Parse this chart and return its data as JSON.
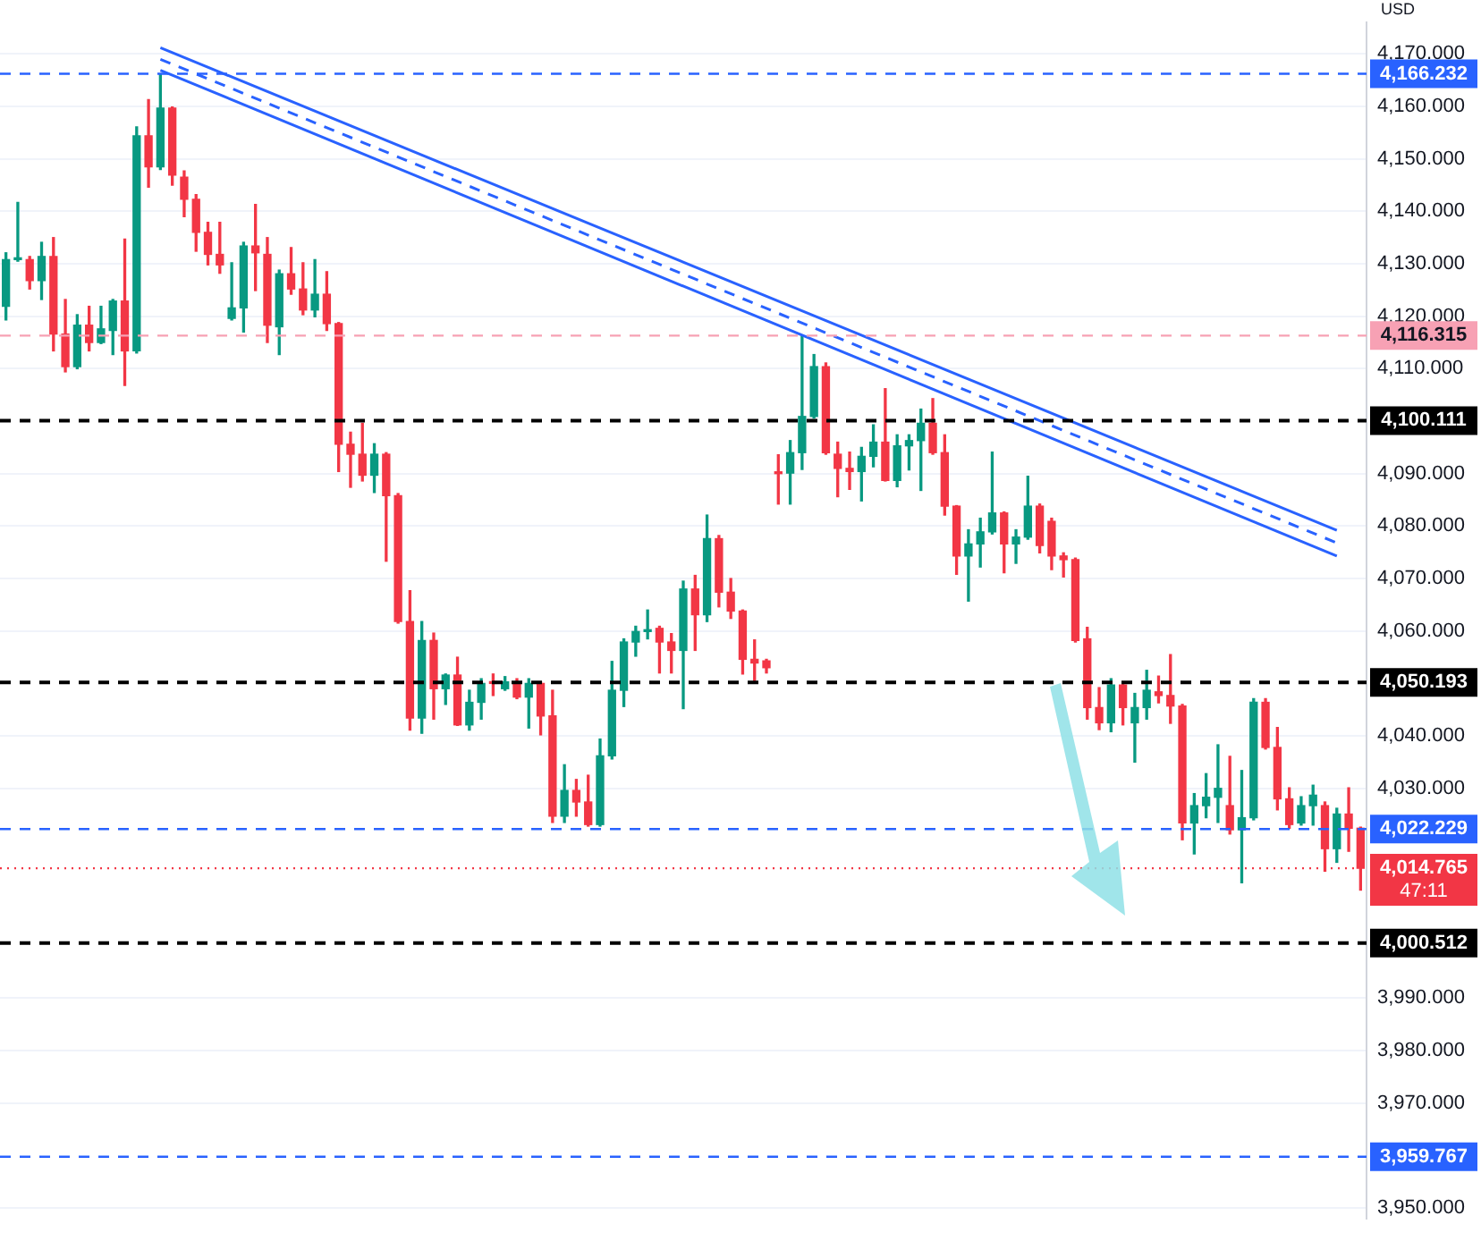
{
  "chart_data": {
    "type": "candlestick",
    "ylabel": "USD",
    "legend": false,
    "grid": "y",
    "marker": "none",
    "categories": [
      null,
      null,
      null,
      null,
      null,
      null,
      null,
      null,
      null,
      null,
      null,
      null,
      null,
      null,
      null,
      null,
      null,
      null,
      null,
      null,
      null,
      null,
      null,
      null,
      null,
      null,
      null,
      null,
      null,
      null,
      null,
      null,
      null,
      null,
      null,
      null,
      null,
      null,
      null,
      null,
      null,
      null,
      null,
      null,
      null,
      null,
      null,
      null,
      null,
      null,
      null,
      null,
      null,
      null,
      null,
      null,
      null,
      null,
      null,
      null,
      null,
      null,
      null,
      null,
      null,
      null,
      null,
      null,
      null,
      null,
      null,
      null,
      null,
      null,
      null,
      null,
      null,
      null,
      null,
      null,
      null,
      null,
      null,
      null,
      null,
      null,
      null,
      null,
      null,
      null,
      null,
      null,
      null,
      null,
      null,
      null,
      null,
      null,
      null,
      null,
      null,
      null,
      null,
      null,
      null,
      null,
      null,
      null,
      null,
      null,
      null,
      null,
      null,
      null,
      null
    ],
    "ohlc": [
      [
        4121.9,
        4132.1,
        4119.3,
        4130.8
      ],
      [
        4130.8,
        4141.7,
        4130.5,
        4131.1
      ],
      [
        4130.8,
        4131.4,
        4125.2,
        4126.8
      ],
      [
        4126.8,
        4134.1,
        4123.2,
        4131.4
      ],
      [
        4131.4,
        4135.0,
        4113.4,
        4116.6
      ],
      [
        4116.6,
        4123.2,
        4109.4,
        4110.4
      ],
      [
        4110.4,
        4120.3,
        4110.0,
        4118.3
      ],
      [
        4118.3,
        4121.9,
        4113.4,
        4115.0
      ],
      [
        4115.0,
        4121.9,
        4114.8,
        4117.6
      ],
      [
        4117.3,
        4123.2,
        4112.7,
        4122.9
      ],
      [
        4122.9,
        4134.7,
        4106.8,
        4113.4
      ],
      [
        4113.4,
        4156.1,
        4113.0,
        4154.4
      ],
      [
        4154.4,
        4161.3,
        4144.6,
        4148.5
      ],
      [
        4148.5,
        4166.2,
        4148.0,
        4159.7
      ],
      [
        4159.7,
        4159.9,
        4145.0,
        4146.9
      ],
      [
        4146.5,
        4147.7,
        4139.0,
        4142.3
      ],
      [
        4142.3,
        4143.2,
        4132.4,
        4136.0
      ],
      [
        4136.0,
        4137.9,
        4129.8,
        4131.8
      ],
      [
        4131.8,
        4137.9,
        4128.2,
        4129.8
      ],
      [
        4119.6,
        4130.2,
        4119.3,
        4121.6
      ],
      [
        4121.6,
        4134.1,
        4117.0,
        4133.4
      ],
      [
        4133.4,
        4141.3,
        4124.9,
        4132.1
      ],
      [
        4131.8,
        4135.0,
        4115.0,
        4118.3
      ],
      [
        4118.0,
        4128.8,
        4112.7,
        4128.1
      ],
      [
        4128.1,
        4133.1,
        4124.2,
        4125.2
      ],
      [
        4125.2,
        4130.2,
        4120.3,
        4121.2
      ],
      [
        4121.2,
        4130.8,
        4119.9,
        4124.2
      ],
      [
        4124.2,
        4128.5,
        4117.3,
        4118.6
      ],
      [
        4118.6,
        4118.8,
        4090.4,
        4095.6
      ],
      [
        4095.6,
        4097.9,
        4087.4,
        4093.7
      ],
      [
        4093.7,
        4099.6,
        4088.6,
        4089.7
      ],
      [
        4089.7,
        4095.7,
        4086.4,
        4093.7
      ],
      [
        4093.7,
        4094.0,
        4073.3,
        4085.8
      ],
      [
        4085.8,
        4086.2,
        4061.5,
        4061.8
      ],
      [
        4061.8,
        4067.7,
        4041.1,
        4043.4
      ],
      [
        4043.4,
        4061.8,
        4040.5,
        4058.2
      ],
      [
        4058.2,
        4059.6,
        4043.2,
        4049.0
      ],
      [
        4049.0,
        4051.8,
        4046.0,
        4051.6
      ],
      [
        4051.6,
        4055.0,
        4042.0,
        4042.1
      ],
      [
        4042.1,
        4048.7,
        4041.1,
        4046.4
      ],
      [
        4046.4,
        4050.9,
        4043.2,
        4050.0
      ],
      [
        4050.2,
        4051.8,
        4047.7,
        4050.0
      ],
      [
        4049.0,
        4051.3,
        4048.7,
        4050.3
      ],
      [
        4050.0,
        4050.9,
        4047.1,
        4047.4
      ],
      [
        4047.4,
        4050.9,
        4041.5,
        4050.0
      ],
      [
        4050.0,
        4050.3,
        4040.2,
        4043.8
      ],
      [
        4043.8,
        4048.7,
        4023.5,
        4024.7
      ],
      [
        4024.7,
        4034.5,
        4023.5,
        4029.6
      ],
      [
        4029.6,
        4031.7,
        4024.7,
        4027.4
      ],
      [
        4027.4,
        4032.5,
        4022.8,
        4023.1
      ],
      [
        4023.1,
        4039.4,
        4022.8,
        4036.2
      ],
      [
        4036.2,
        4054.2,
        4035.6,
        4048.7
      ],
      [
        4048.7,
        4058.5,
        4045.6,
        4057.9
      ],
      [
        4057.9,
        4060.9,
        4055.2,
        4059.9
      ],
      [
        4059.9,
        4064.0,
        4058.5,
        4060.2
      ],
      [
        4060.5,
        4060.9,
        4052.0,
        4057.9
      ],
      [
        4057.9,
        4059.5,
        4052.0,
        4056.3
      ],
      [
        4056.3,
        4069.5,
        4045.2,
        4068.0
      ],
      [
        4068.0,
        4070.6,
        4056.3,
        4063.1
      ],
      [
        4063.1,
        4082.1,
        4061.8,
        4077.6
      ],
      [
        4077.6,
        4078.2,
        4064.6,
        4067.4
      ],
      [
        4067.4,
        4070.0,
        4062.4,
        4063.8
      ],
      [
        4063.8,
        4064.0,
        4051.8,
        4054.6
      ],
      [
        4054.6,
        4058.3,
        4050.3,
        4053.9
      ],
      [
        4054.3,
        4054.6,
        4052.0,
        4053.0
      ],
      [
        4090.2,
        4093.6,
        4084.2,
        4090.0
      ],
      [
        4090.1,
        4096.3,
        4084.2,
        4094.0
      ],
      [
        4094.0,
        4116.3,
        4090.8,
        4100.9
      ],
      [
        4100.9,
        4112.7,
        4100.6,
        4110.4
      ],
      [
        4110.4,
        4111.1,
        4093.7,
        4094.0
      ],
      [
        4093.7,
        4096.0,
        4085.6,
        4091.0
      ],
      [
        4091.0,
        4094.1,
        4087.0,
        4090.4
      ],
      [
        4090.4,
        4095.0,
        4084.8,
        4093.3
      ],
      [
        4093.3,
        4099.3,
        4091.3,
        4096.0
      ],
      [
        4096.0,
        4106.2,
        4088.6,
        4088.7
      ],
      [
        4088.7,
        4097.4,
        4087.5,
        4095.3
      ],
      [
        4095.3,
        4097.4,
        4090.7,
        4096.3
      ],
      [
        4096.3,
        4102.3,
        4086.8,
        4099.6
      ],
      [
        4099.6,
        4104.3,
        4093.7,
        4094.0
      ],
      [
        4094.0,
        4097.4,
        4082.1,
        4083.8
      ],
      [
        4083.8,
        4083.9,
        4070.8,
        4074.3
      ],
      [
        4074.3,
        4079.3,
        4065.7,
        4076.6
      ],
      [
        4076.6,
        4081.5,
        4072.2,
        4078.9
      ],
      [
        4078.9,
        4094.1,
        4078.5,
        4082.5
      ],
      [
        4082.5,
        4082.7,
        4071.1,
        4076.6
      ],
      [
        4076.6,
        4079.3,
        4072.9,
        4077.9
      ],
      [
        4077.9,
        4089.5,
        4077.5,
        4083.8
      ],
      [
        4083.8,
        4084.2,
        4074.9,
        4076.3
      ],
      [
        4080.9,
        4081.5,
        4071.7,
        4074.3
      ],
      [
        4074.3,
        4074.9,
        4070.3,
        4073.6
      ],
      [
        4073.6,
        4073.9,
        4057.9,
        4058.2
      ],
      [
        4058.5,
        4060.7,
        4043.2,
        4045.4
      ],
      [
        4045.4,
        4049.2,
        4041.2,
        4042.5
      ],
      [
        4042.5,
        4050.9,
        4040.8,
        4049.7
      ],
      [
        4049.7,
        4049.9,
        4042.1,
        4045.4
      ],
      [
        4042.5,
        4048.1,
        4035.0,
        4045.4
      ],
      [
        4045.4,
        4052.5,
        4043.2,
        4048.7
      ],
      [
        4048.4,
        4051.4,
        4046.3,
        4047.7
      ],
      [
        4047.7,
        4055.5,
        4042.4,
        4045.7
      ],
      [
        4045.7,
        4046.0,
        4020.2,
        4023.4
      ],
      [
        4023.4,
        4029.0,
        4017.5,
        4026.7
      ],
      [
        4026.7,
        4032.8,
        4024.4,
        4028.3
      ],
      [
        4028.3,
        4038.3,
        4023.5,
        4030.0
      ],
      [
        4026.7,
        4036.1,
        4021.3,
        4022.1
      ],
      [
        4022.1,
        4033.4,
        4012.0,
        4024.4
      ],
      [
        4024.4,
        4047.1,
        4024.0,
        4046.4
      ],
      [
        4046.4,
        4047.1,
        4037.5,
        4037.8
      ],
      [
        4037.8,
        4041.6,
        4025.9,
        4028.0
      ],
      [
        4028.0,
        4030.1,
        4022.4,
        4023.1
      ],
      [
        4023.4,
        4028.4,
        4023.0,
        4026.7
      ],
      [
        4026.7,
        4030.6,
        4023.0,
        4028.7
      ],
      [
        4026.7,
        4027.4,
        4014.2,
        4018.5
      ],
      [
        4018.5,
        4026.2,
        4015.9,
        4025.1
      ],
      [
        4025.1,
        4030.1,
        4018.0,
        4022.4
      ],
      [
        4022.4,
        4022.6,
        4010.6,
        4014.765
      ]
    ],
    "colors": [
      "#089981",
      "#089981",
      "#f23645",
      "#089981",
      "#f23645",
      "#f23645",
      "#089981",
      "#f23645",
      "#089981",
      "#089981",
      "#f23645",
      "#089981",
      "#f23645",
      "#089981",
      "#f23645",
      "#f23645",
      "#f23645",
      "#f23645",
      "#f23645",
      "#089981",
      "#089981",
      "#f23645",
      "#f23645",
      "#089981",
      "#f23645",
      "#f23645",
      "#089981",
      "#f23645",
      "#f23645",
      "#f23645",
      "#f23645",
      "#089981",
      "#f23645",
      "#f23645",
      "#f23645",
      "#089981",
      "#f23645",
      "#089981",
      "#f23645",
      "#089981",
      "#089981",
      "#f23645",
      "#089981",
      "#f23645",
      "#089981",
      "#f23645",
      "#f23645",
      "#089981",
      "#f23645",
      "#f23645",
      "#089981",
      "#089981",
      "#089981",
      "#089981",
      "#089981",
      "#f23645",
      "#f23645",
      "#089981",
      "#f23645",
      "#089981",
      "#f23645",
      "#f23645",
      "#f23645",
      "#f23645",
      "#f23645",
      "#f23645",
      "#089981",
      "#089981",
      "#089981",
      "#f23645",
      "#f23645",
      "#f23645",
      "#089981",
      "#089981",
      "#f23645",
      "#089981",
      "#089981",
      "#089981",
      "#f23645",
      "#f23645",
      "#f23645",
      "#089981",
      "#089981",
      "#089981",
      "#f23645",
      "#089981",
      "#089981",
      "#f23645",
      "#f23645",
      "#f23645",
      "#f23645",
      "#f23645",
      "#f23645",
      "#089981",
      "#f23645",
      "#089981",
      "#089981",
      "#f23645",
      "#f23645",
      "#f23645",
      "#089981",
      "#089981",
      "#089981",
      "#f23645",
      "#089981",
      "#089981",
      "#f23645",
      "#f23645",
      "#f23645",
      "#089981",
      "#089981",
      "#f23645",
      "#089981",
      "#f23645",
      "#f23645"
    ],
    "series": [
      {
        "type": "line",
        "color": "#2962ff",
        "line_style": "solid",
        "values": [
          null,
          null,
          null,
          null,
          null,
          null,
          null,
          null,
          null,
          null,
          null,
          null,
          null,
          4171.2,
          null,
          null,
          null,
          null,
          null,
          null,
          null,
          null,
          null,
          null,
          null,
          null,
          null,
          null,
          null,
          null,
          null,
          null,
          null,
          null,
          null,
          null,
          null,
          null,
          null,
          null,
          null,
          null,
          null,
          null,
          null,
          null,
          null,
          null,
          null,
          null,
          null,
          null,
          null,
          null,
          null,
          null,
          null,
          null,
          null,
          null,
          null,
          null,
          null,
          null,
          null,
          null,
          null,
          null,
          null,
          null,
          null,
          null,
          null,
          null,
          null,
          null,
          null,
          null,
          null,
          null,
          null,
          null,
          null,
          null,
          null,
          null,
          null,
          null,
          null,
          null,
          null,
          null,
          null,
          null,
          null,
          null,
          null,
          null,
          null,
          null,
          null,
          null,
          null,
          null,
          null,
          null,
          null,
          null,
          null,
          null,
          null,
          null,
          4079.2,
          null,
          null
        ]
      },
      {
        "type": "line",
        "color": "#2962ff",
        "line_style": "dashed",
        "values": [
          null,
          null,
          null,
          null,
          null,
          null,
          null,
          null,
          null,
          null,
          null,
          null,
          null,
          4169.0,
          null,
          null,
          null,
          null,
          null,
          null,
          null,
          null,
          null,
          null,
          null,
          null,
          null,
          null,
          null,
          null,
          null,
          null,
          null,
          null,
          null,
          null,
          null,
          null,
          null,
          null,
          null,
          null,
          null,
          null,
          null,
          null,
          null,
          null,
          null,
          null,
          null,
          null,
          null,
          null,
          null,
          null,
          null,
          null,
          null,
          null,
          null,
          null,
          null,
          null,
          null,
          null,
          null,
          null,
          null,
          null,
          null,
          null,
          null,
          null,
          null,
          null,
          null,
          null,
          null,
          null,
          null,
          null,
          null,
          null,
          null,
          null,
          null,
          null,
          null,
          null,
          null,
          null,
          null,
          null,
          null,
          null,
          null,
          null,
          null,
          null,
          null,
          null,
          null,
          null,
          null,
          null,
          null,
          null,
          null,
          null,
          null,
          null,
          4076.8,
          null,
          null
        ]
      },
      {
        "type": "line",
        "color": "#2962ff",
        "line_style": "solid",
        "values": [
          null,
          null,
          null,
          null,
          null,
          null,
          null,
          null,
          null,
          null,
          null,
          null,
          null,
          4166.9,
          null,
          null,
          null,
          null,
          null,
          null,
          null,
          null,
          null,
          null,
          null,
          null,
          null,
          null,
          null,
          null,
          null,
          null,
          null,
          null,
          null,
          null,
          null,
          null,
          null,
          null,
          null,
          null,
          null,
          null,
          null,
          null,
          null,
          null,
          null,
          null,
          null,
          null,
          null,
          null,
          null,
          null,
          null,
          null,
          null,
          null,
          null,
          null,
          null,
          null,
          null,
          null,
          null,
          null,
          null,
          null,
          null,
          null,
          null,
          null,
          null,
          null,
          null,
          null,
          null,
          null,
          null,
          null,
          null,
          null,
          null,
          null,
          null,
          null,
          null,
          null,
          null,
          null,
          null,
          null,
          null,
          null,
          null,
          null,
          null,
          null,
          null,
          null,
          null,
          null,
          null,
          null,
          null,
          null,
          null,
          null,
          null,
          null,
          4074.3,
          null,
          null
        ]
      }
    ],
    "ylim": [
      3948,
      4176
    ],
    "yticks": [
      {
        "value": 3950,
        "label": "3,950.000"
      },
      {
        "value": 3970,
        "label": "3,970.000"
      },
      {
        "value": 3980,
        "label": "3,980.000"
      },
      {
        "value": 3990,
        "label": "3,990.000"
      },
      {
        "value": 4030,
        "label": "4,030.000"
      },
      {
        "value": 4040,
        "label": "4,040.000"
      },
      {
        "value": 4060,
        "label": "4,060.000"
      },
      {
        "value": 4070,
        "label": "4,070.000"
      },
      {
        "value": 4080,
        "label": "4,080.000"
      },
      {
        "value": 4090,
        "label": "4,090.000"
      },
      {
        "value": 4110,
        "label": "4,110.000"
      },
      {
        "value": 4120,
        "label": "4,120.000"
      },
      {
        "value": 4130,
        "label": "4,130.000"
      },
      {
        "value": 4140,
        "label": "4,140.000"
      },
      {
        "value": 4150,
        "label": "4,150.000"
      },
      {
        "value": 4160,
        "label": "4,160.000"
      },
      {
        "value": 4170,
        "label": "4,170.000"
      }
    ],
    "ref_lines": [
      {
        "axis": "y",
        "value": 4166.232,
        "label": "4,166.232",
        "color": "#2962ff",
        "line_style": "dashed"
      },
      {
        "axis": "y",
        "value": 4116.315,
        "label": "4,116.315",
        "color": "#f7a1b4",
        "line_style": "dashed"
      },
      {
        "axis": "y",
        "value": 4100.111,
        "label": "4,100.111",
        "color": "#000000",
        "line_style": "dashed"
      },
      {
        "axis": "y",
        "value": 4050.193,
        "label": "4,050.193",
        "color": "#000000",
        "line_style": "dashed"
      },
      {
        "axis": "y",
        "value": 4022.229,
        "label": "4,022.229",
        "color": "#2962ff",
        "line_style": "dashed"
      },
      {
        "axis": "y",
        "value": 4014.765,
        "label": "4,014.765",
        "color": "#f23645",
        "line_style": "dotted"
      },
      {
        "axis": "y",
        "value": 4000.512,
        "label": "4,000.512",
        "color": "#000000",
        "line_style": "dashed"
      },
      {
        "axis": "y",
        "value": 3959.767,
        "label": "3,959.767",
        "color": "#2962ff",
        "line_style": "dashed"
      }
    ],
    "annotations": [
      "47:11"
    ]
  }
}
